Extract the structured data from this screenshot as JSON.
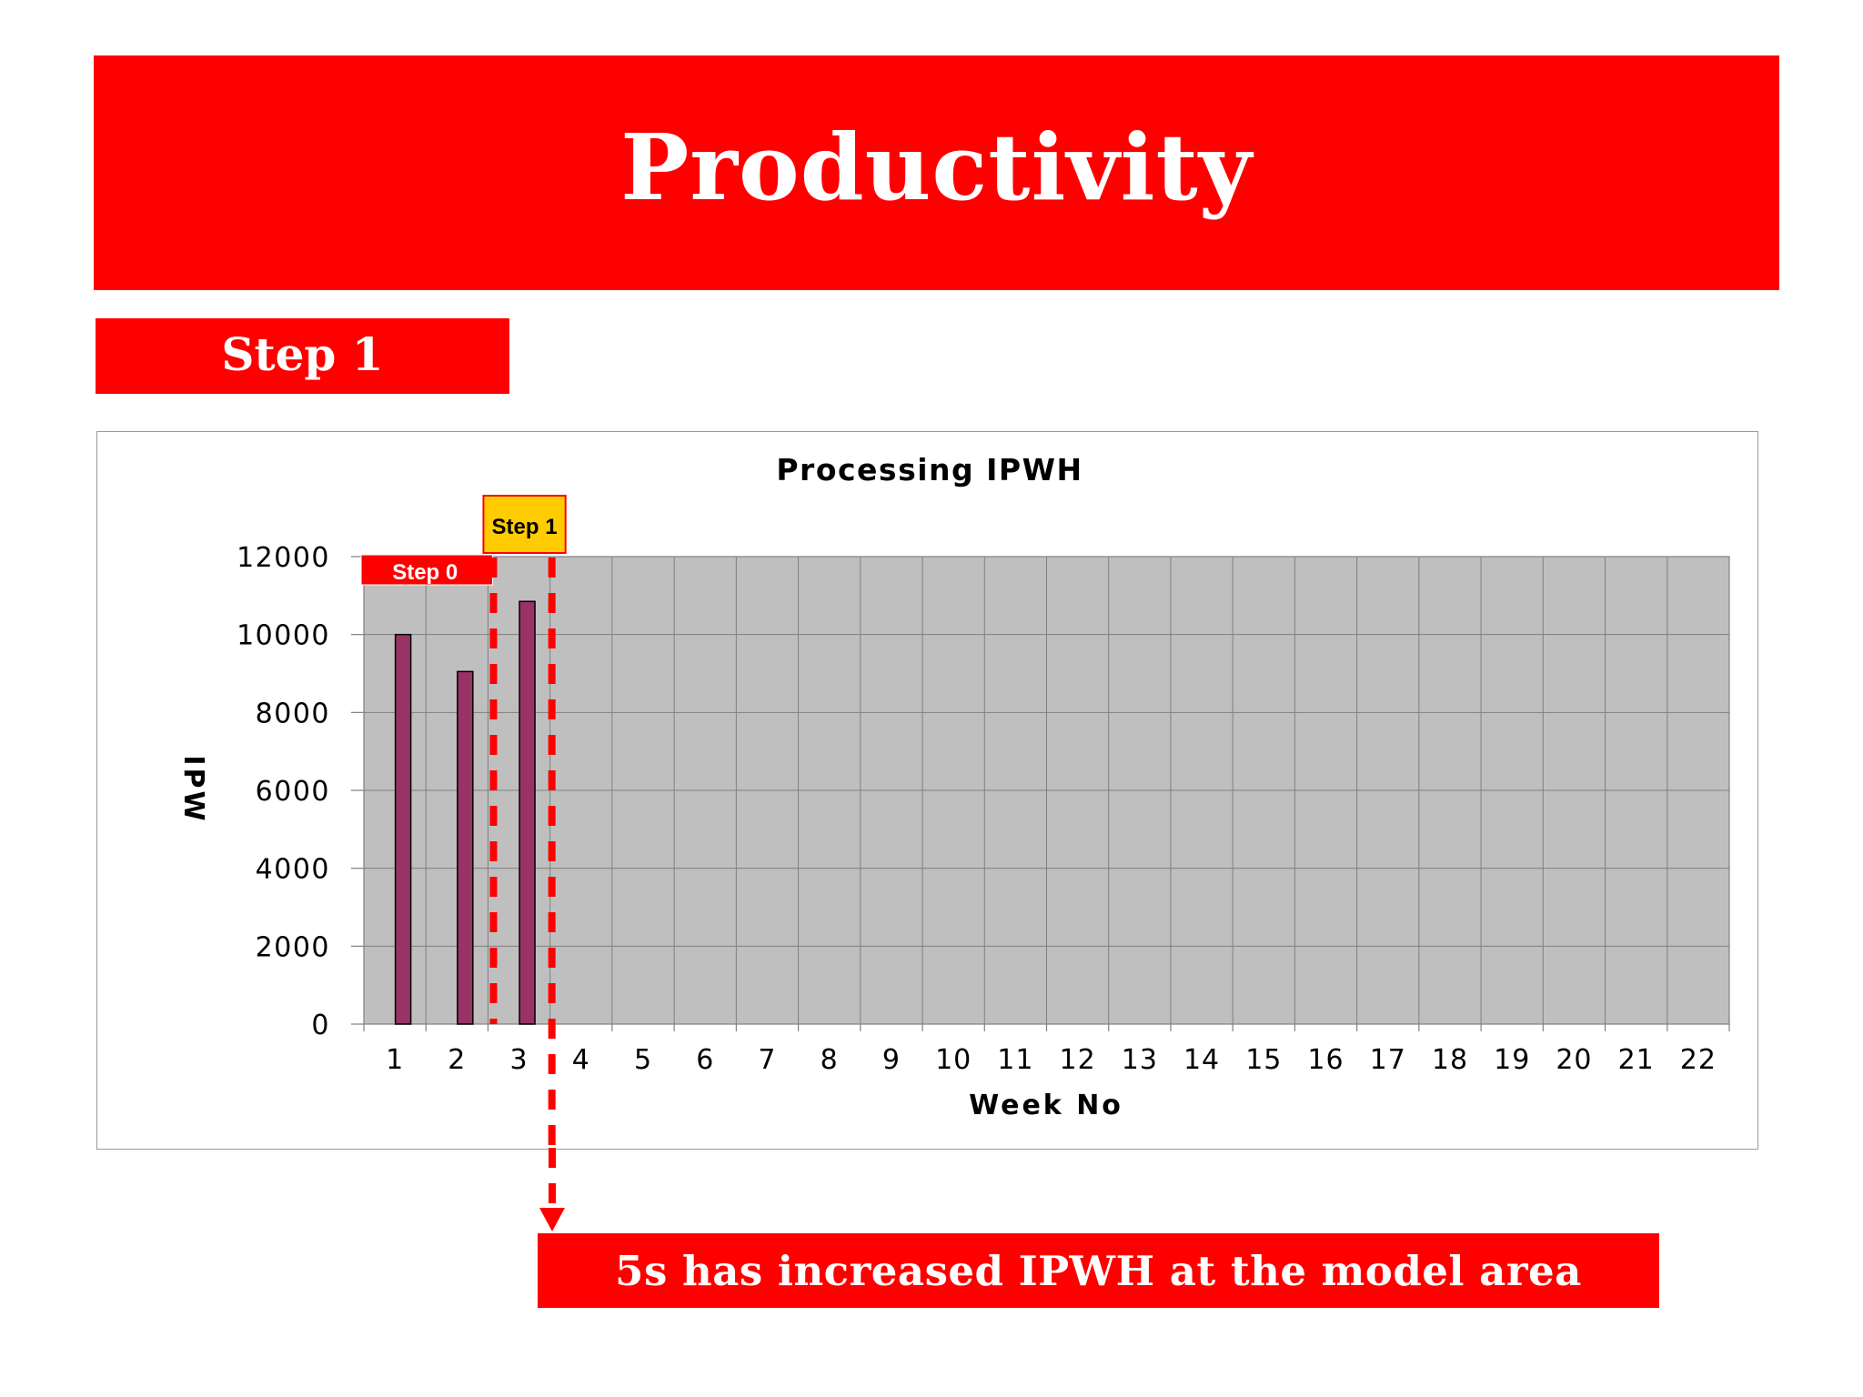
{
  "slide": {
    "title": "Productivity",
    "step_label": "Step 1",
    "conclusion": "5s has increased IPWH at the model area"
  },
  "colors": {
    "banner_red": "#fe0000",
    "plot_bg": "#c0bfc0",
    "bar_fill": "#993366",
    "step1_badge": "#ffcc00",
    "marker_dash": "#fe0000"
  },
  "chart_data": {
    "type": "bar",
    "title": "Processing IPWH",
    "xlabel": "Week No",
    "ylabel": "IPW",
    "categories": [
      "1",
      "2",
      "3",
      "4",
      "5",
      "6",
      "7",
      "8",
      "9",
      "10",
      "11",
      "12",
      "13",
      "14",
      "15",
      "16",
      "17",
      "18",
      "19",
      "20",
      "21",
      "22"
    ],
    "series": [
      {
        "values": [
          10000,
          9050,
          10850,
          null,
          null,
          null,
          null,
          null,
          null,
          null,
          null,
          null,
          null,
          null,
          null,
          null,
          null,
          null,
          null,
          null,
          null,
          null
        ]
      }
    ],
    "ylim": [
      0,
      12000
    ],
    "yticks": [
      0,
      2000,
      4000,
      6000,
      8000,
      10000,
      12000
    ],
    "grid": true,
    "annotations": [
      {
        "label": "Step 0",
        "style": "red-badge",
        "span_weeks": [
          1,
          2
        ]
      },
      {
        "label": "Step 1",
        "style": "yellow-badge",
        "span_weeks": [
          3,
          3
        ]
      }
    ]
  }
}
